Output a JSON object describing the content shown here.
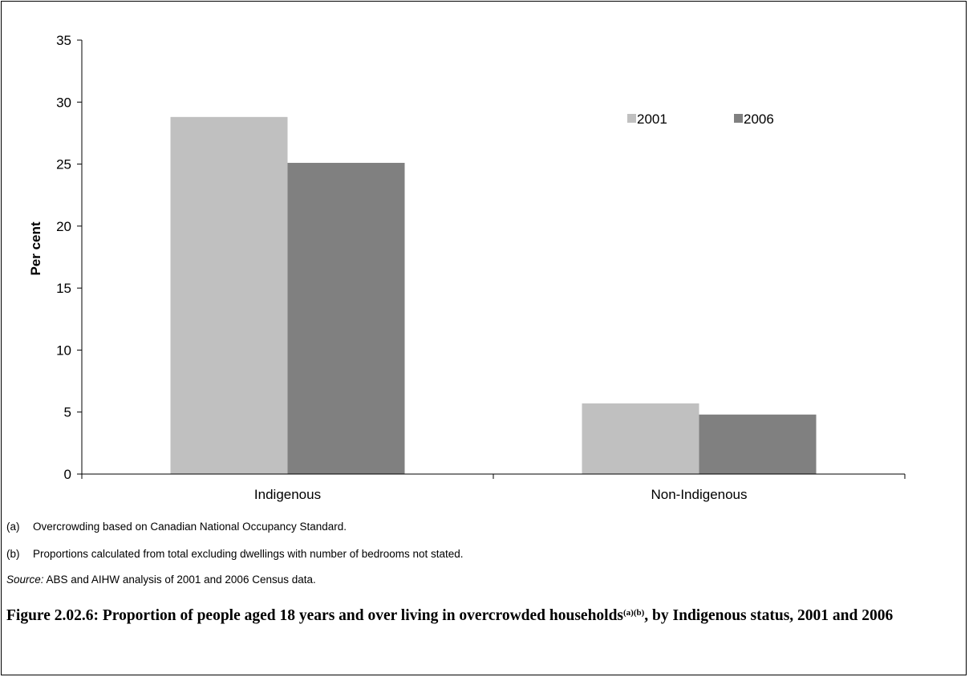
{
  "chart_data": {
    "type": "bar",
    "categories": [
      "Indigenous",
      "Non-Indigenous"
    ],
    "series": [
      {
        "name": "2001",
        "values": [
          28.8,
          5.7
        ],
        "color": "#c0c0c0"
      },
      {
        "name": "2006",
        "values": [
          25.1,
          4.8
        ],
        "color": "#808080"
      }
    ],
    "ylabel": "Per cent",
    "ylim": [
      0,
      35
    ],
    "yticks": [
      "0",
      "5",
      "10",
      "15",
      "20",
      "25",
      "30",
      "35"
    ],
    "grid": false,
    "legend_position": "top-right"
  },
  "notes": [
    {
      "mark": "(a)",
      "text": "Overcrowding based on Canadian National Occupancy Standard."
    },
    {
      "mark": "(b)",
      "text": "Proportions calculated from total excluding dwellings with number of bedrooms not stated."
    }
  ],
  "source": {
    "label": "Source:",
    "text": " ABS and AIHW analysis of 2001 and 2006 Census data."
  },
  "caption": {
    "part1": "Figure 2.02.6: Proportion of people aged 18 years and over living in overcrowded households",
    "superscript": "(a)(b)",
    "part2": ", by Indigenous status, 2001 and 2006"
  }
}
